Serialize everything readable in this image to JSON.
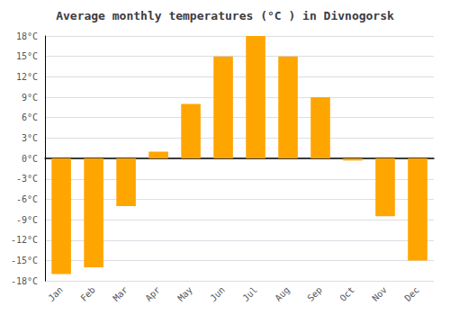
{
  "chart_data": {
    "type": "bar",
    "title": "Average monthly temperatures (°C ) in Divnogorsk",
    "categories": [
      "Jan",
      "Feb",
      "Mar",
      "Apr",
      "May",
      "Jun",
      "Jul",
      "Aug",
      "Sep",
      "Oct",
      "Nov",
      "Dec"
    ],
    "values": [
      -17,
      -16,
      -7,
      1,
      8,
      15,
      18,
      15,
      9,
      -0.3,
      -8.5,
      -15
    ],
    "color": "#FFA500",
    "ylim": [
      -18,
      18
    ],
    "yticks": [
      {
        "value": -18,
        "label": "-18°C"
      },
      {
        "value": -15,
        "label": "-15°C"
      },
      {
        "value": -12,
        "label": "-12°C"
      },
      {
        "value": -9,
        "label": "-9°C"
      },
      {
        "value": -6,
        "label": "-6°C"
      },
      {
        "value": -3,
        "label": "-3°C"
      },
      {
        "value": 0,
        "label": "0°C"
      },
      {
        "value": 3,
        "label": "3°C"
      },
      {
        "value": 6,
        "label": "6°C"
      },
      {
        "value": 9,
        "label": "9°C"
      },
      {
        "value": 12,
        "label": "12°C"
      },
      {
        "value": 15,
        "label": "15°C"
      },
      {
        "value": 18,
        "label": "18°C"
      }
    ],
    "grid": true
  }
}
